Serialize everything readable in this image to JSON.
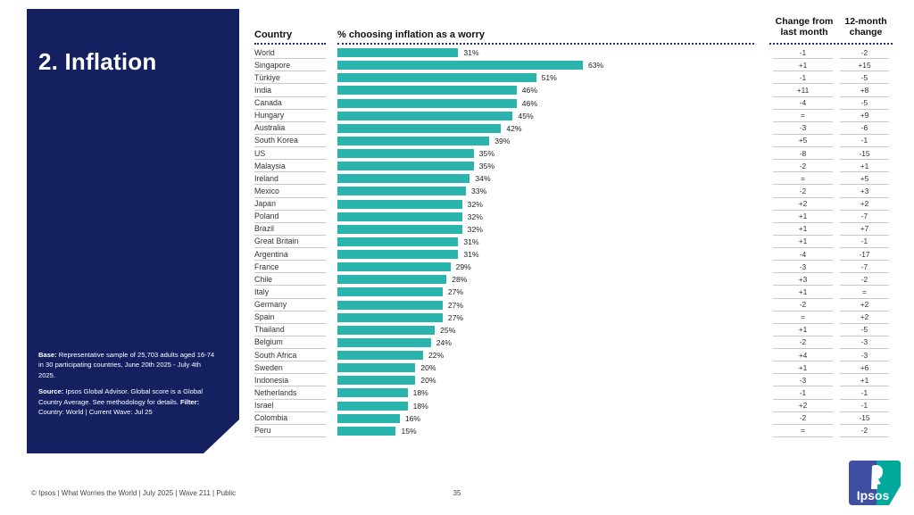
{
  "sidebar": {
    "title": "2. Inflation",
    "base_label": "Base:",
    "base_text": " Representative sample of 25,703 adults aged 16-74 in 30 participating countries, June 20th 2025 - July 4th 2025.",
    "source_label": "Source:",
    "source_text": " Ipsos Global Advisor. Global score is a Global Country Average. See methodology for details. ",
    "filter_label": "Filter:",
    "filter_text": " Country: World | Current Wave: Jul 25"
  },
  "table": {
    "country_header": "Country",
    "chart_header": "% choosing inflation as a worry",
    "change_last_month_header": "Change from last month",
    "change_12_month_header": "12-month change"
  },
  "chart_data": {
    "type": "bar",
    "orientation": "horizontal",
    "title": "% choosing inflation as a worry",
    "xlabel": "% choosing inflation as a worry",
    "ylabel": "Country",
    "xlim": [
      0,
      70
    ],
    "grid": false,
    "bar_color": "#2BB3AE",
    "categories": [
      "World",
      "Singapore",
      "Türkiye",
      "India",
      "Canada",
      "Hungary",
      "Australia",
      "South Korea",
      "US",
      "Malaysia",
      "Ireland",
      "Mexico",
      "Japan",
      "Poland",
      "Brazil",
      "Great Britain",
      "Argentina",
      "France",
      "Chile",
      "Italy",
      "Germany",
      "Spain",
      "Thailand",
      "Belgium",
      "South Africa",
      "Sweden",
      "Indonesia",
      "Netherlands",
      "Israel",
      "Colombia",
      "Peru"
    ],
    "values": [
      31,
      63,
      51,
      46,
      46,
      45,
      42,
      39,
      35,
      35,
      34,
      33,
      32,
      32,
      32,
      31,
      31,
      29,
      28,
      27,
      27,
      27,
      25,
      24,
      22,
      20,
      20,
      18,
      18,
      16,
      15
    ],
    "change_from_last_month": [
      "-1",
      "+1",
      "-1",
      "+11",
      "-4",
      "=",
      "-3",
      "+5",
      "-8",
      "-2",
      "=",
      "-2",
      "+2",
      "+1",
      "+1",
      "+1",
      "-4",
      "-3",
      "+3",
      "+1",
      "-2",
      "=",
      "+1",
      "-2",
      "+4",
      "+1",
      "-3",
      "-1",
      "+2",
      "-2",
      "="
    ],
    "change_12_month": [
      "-2",
      "+15",
      "-5",
      "+8",
      "-5",
      "+9",
      "-6",
      "-1",
      "-15",
      "+1",
      "+5",
      "+3",
      "+2",
      "-7",
      "+7",
      "-1",
      "-17",
      "-7",
      "-2",
      "=",
      "+2",
      "+2",
      "-5",
      "-3",
      "-3",
      "+6",
      "+1",
      "-1",
      "-1",
      "-15",
      "-2"
    ]
  },
  "footer": {
    "copyright": "© Ipsos | What Worries the World | July 2025 | Wave 211 | Public",
    "page_number": "35",
    "logo_text": "Ipsos"
  },
  "colors": {
    "navy": "#152061",
    "teal": "#2BB3AE",
    "logo_blue": "#3E4FA3",
    "logo_teal": "#00A79B"
  }
}
